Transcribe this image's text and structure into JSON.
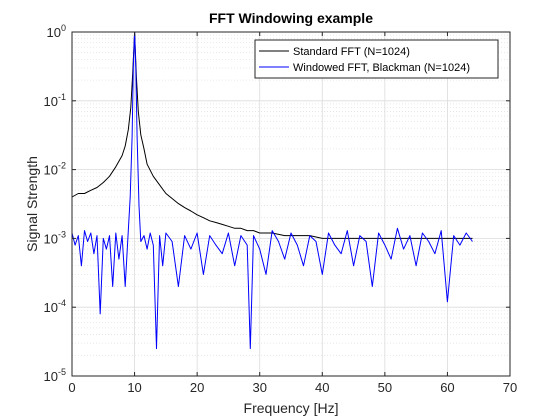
{
  "chart_data": {
    "type": "line",
    "title": "FFT Windowing example",
    "xlabel": "Frequency [Hz]",
    "ylabel": "Signal Strength",
    "xlim": [
      0,
      70
    ],
    "ylim": [
      1e-05,
      1
    ],
    "yscale": "log",
    "grid": true,
    "minor_grid": true,
    "legend_position": "top-right",
    "xticks": [
      0,
      10,
      20,
      30,
      40,
      50,
      60,
      70
    ],
    "xtick_labels": [
      "0",
      "10",
      "20",
      "30",
      "40",
      "50",
      "60",
      "70"
    ],
    "yticks": [
      1e-05,
      0.0001,
      0.001,
      0.01,
      0.1,
      1
    ],
    "ytick_labels": [
      {
        "base": "10",
        "exp": "-5"
      },
      {
        "base": "10",
        "exp": "-4"
      },
      {
        "base": "10",
        "exp": "-3"
      },
      {
        "base": "10",
        "exp": "-2"
      },
      {
        "base": "10",
        "exp": "-1"
      },
      {
        "base": "10",
        "exp": "0"
      }
    ],
    "series": [
      {
        "name": "Standard FFT (N=1024)",
        "color": "#000000",
        "x": [
          0,
          1,
          2,
          3,
          4,
          5,
          6,
          7,
          8,
          8.5,
          9,
          9.4,
          9.7,
          9.9,
          10,
          10.1,
          10.3,
          10.6,
          11,
          11.5,
          12,
          13,
          14,
          15,
          16,
          17,
          18,
          19,
          20,
          21,
          22,
          23,
          24,
          25,
          26,
          27,
          28,
          29,
          30,
          32,
          34,
          36,
          38,
          40,
          42,
          44,
          46,
          48,
          50,
          52,
          54,
          56,
          58,
          60,
          62,
          64
        ],
        "y": [
          0.004,
          0.0045,
          0.0045,
          0.005,
          0.0055,
          0.0065,
          0.008,
          0.011,
          0.016,
          0.022,
          0.038,
          0.08,
          0.25,
          0.6,
          1.0,
          0.6,
          0.22,
          0.07,
          0.032,
          0.02,
          0.012,
          0.008,
          0.006,
          0.0045,
          0.0038,
          0.0032,
          0.0028,
          0.0025,
          0.0022,
          0.002,
          0.0018,
          0.0017,
          0.0016,
          0.0015,
          0.0014,
          0.0014,
          0.0013,
          0.0013,
          0.0012,
          0.0012,
          0.0011,
          0.0011,
          0.0011,
          0.001,
          0.001,
          0.001,
          0.001,
          0.001,
          0.001,
          0.001,
          0.001,
          0.001,
          0.001,
          0.001,
          0.001,
          0.001
        ]
      },
      {
        "name": "Windowed FFT, Blackman (N=1024)",
        "color": "#0000ff",
        "x": [
          0,
          0.5,
          1,
          1.5,
          2,
          2.5,
          3,
          3.5,
          4,
          4.5,
          5,
          5.5,
          6,
          6.5,
          7,
          7.5,
          8,
          8.5,
          9,
          9.3,
          9.6,
          9.8,
          10,
          10.2,
          10.4,
          10.7,
          11,
          11.5,
          12,
          12.5,
          13,
          13.5,
          14,
          14.5,
          15,
          16,
          17,
          18,
          19,
          20,
          21,
          22,
          23,
          24,
          25,
          26,
          27,
          28,
          28.5,
          29,
          30,
          31,
          32,
          33,
          34,
          35,
          36,
          37,
          38,
          39,
          40,
          41,
          42,
          43,
          44,
          45,
          46,
          47,
          48,
          49,
          50,
          51,
          52,
          53,
          54,
          55,
          56,
          57,
          58,
          59,
          60,
          61,
          62,
          63,
          64
        ],
        "y": [
          0.0012,
          0.0008,
          0.0011,
          0.0004,
          0.0013,
          0.0009,
          0.0012,
          0.0006,
          0.0011,
          8e-05,
          0.001,
          0.0007,
          0.0011,
          0.0002,
          0.0012,
          0.0005,
          0.0011,
          0.0002,
          0.0013,
          0.004,
          0.03,
          0.3,
          1.0,
          0.3,
          0.03,
          0.003,
          0.0009,
          0.0011,
          0.0007,
          0.0012,
          0.0008,
          2.5e-05,
          0.0011,
          0.0004,
          0.0012,
          0.0009,
          0.0002,
          0.0011,
          0.0007,
          0.0012,
          0.0003,
          0.0011,
          0.0008,
          0.0006,
          0.0012,
          0.0004,
          0.0011,
          0.0008,
          2.5e-05,
          0.0011,
          0.0007,
          0.0003,
          0.0013,
          0.0009,
          0.0005,
          0.0012,
          0.0008,
          0.0004,
          0.0011,
          0.0009,
          0.0003,
          0.0012,
          0.0008,
          0.0006,
          0.0013,
          0.0004,
          0.0011,
          0.0009,
          0.0002,
          0.0012,
          0.0008,
          0.0005,
          0.0014,
          0.0007,
          0.0011,
          0.0004,
          0.0012,
          0.0009,
          0.0006,
          0.0013,
          0.00012,
          0.0011,
          0.0008,
          0.0012,
          0.0009
        ]
      }
    ]
  }
}
